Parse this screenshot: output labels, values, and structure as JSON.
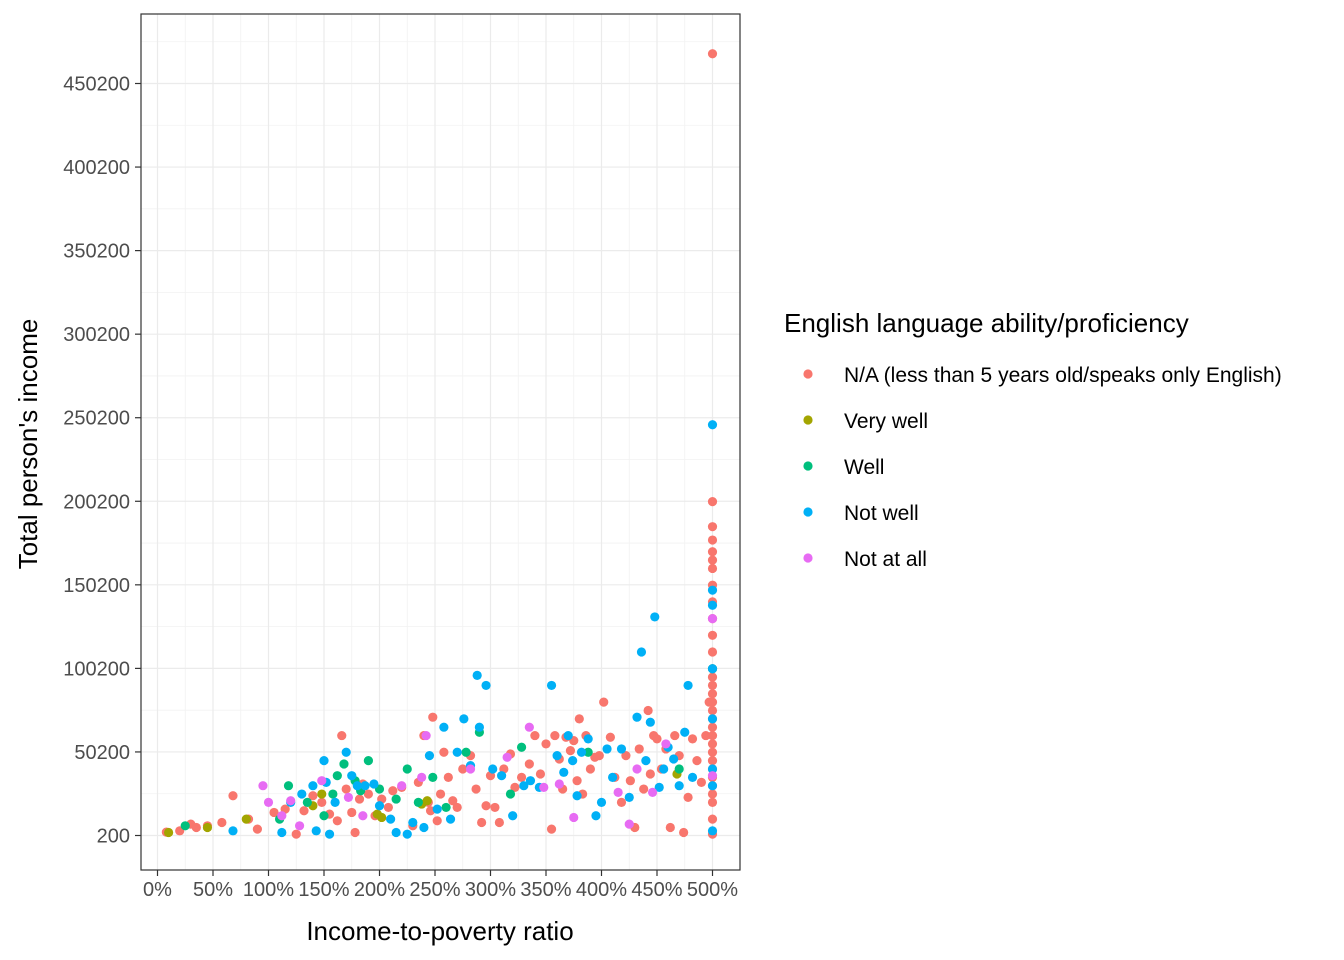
{
  "chart_data": {
    "type": "scatter",
    "xlabel": "Income-to-poverty ratio",
    "ylabel": "Total person's income",
    "xlim": [
      0,
      500
    ],
    "ylim": [
      200,
      450200
    ],
    "x_ticks": [
      0,
      50,
      100,
      150,
      200,
      250,
      300,
      350,
      400,
      450,
      500
    ],
    "x_tick_labels": [
      "0%",
      "50%",
      "100%",
      "150%",
      "200%",
      "250%",
      "300%",
      "350%",
      "400%",
      "450%",
      "500%"
    ],
    "y_ticks": [
      200,
      50200,
      100200,
      150200,
      200200,
      250200,
      300200,
      350200,
      400200,
      450200
    ],
    "y_tick_labels": [
      "200",
      "50200",
      "100200",
      "150200",
      "200200",
      "250200",
      "300200",
      "350200",
      "400200",
      "450200"
    ],
    "grid": true,
    "legend": {
      "title": "English language ability/proficiency",
      "placement": "right"
    },
    "series": [
      {
        "name": "N/A (less than 5 years old/speaks only English)",
        "color": "#F8766D",
        "points": [
          [
            8,
            2200
          ],
          [
            20,
            3000
          ],
          [
            30,
            7000
          ],
          [
            35,
            5000
          ],
          [
            45,
            6000
          ],
          [
            58,
            8000
          ],
          [
            68,
            24000
          ],
          [
            82,
            10000
          ],
          [
            90,
            4000
          ],
          [
            105,
            14000
          ],
          [
            115,
            16000
          ],
          [
            125,
            1000
          ],
          [
            132,
            15000
          ],
          [
            140,
            24000
          ],
          [
            148,
            20000
          ],
          [
            155,
            13000
          ],
          [
            162,
            9000
          ],
          [
            166,
            60000
          ],
          [
            170,
            28000
          ],
          [
            175,
            14000
          ],
          [
            178,
            2000
          ],
          [
            182,
            22000
          ],
          [
            185,
            31000
          ],
          [
            190,
            25000
          ],
          [
            196,
            12000
          ],
          [
            202,
            22000
          ],
          [
            208,
            17000
          ],
          [
            212,
            27000
          ],
          [
            220,
            29000
          ],
          [
            230,
            6000
          ],
          [
            235,
            32000
          ],
          [
            240,
            60000
          ],
          [
            244,
            20000
          ],
          [
            246,
            15000
          ],
          [
            248,
            71000
          ],
          [
            252,
            9000
          ],
          [
            255,
            25000
          ],
          [
            258,
            50000
          ],
          [
            262,
            35000
          ],
          [
            266,
            21000
          ],
          [
            270,
            17000
          ],
          [
            275,
            40000
          ],
          [
            282,
            48000
          ],
          [
            287,
            28000
          ],
          [
            292,
            8000
          ],
          [
            296,
            18000
          ],
          [
            300,
            36000
          ],
          [
            304,
            17000
          ],
          [
            308,
            8000
          ],
          [
            312,
            40000
          ],
          [
            318,
            49000
          ],
          [
            322,
            29000
          ],
          [
            328,
            35000
          ],
          [
            335,
            43000
          ],
          [
            340,
            60000
          ],
          [
            345,
            37000
          ],
          [
            350,
            55000
          ],
          [
            355,
            4000
          ],
          [
            358,
            60000
          ],
          [
            362,
            46000
          ],
          [
            365,
            28000
          ],
          [
            368,
            59000
          ],
          [
            372,
            51000
          ],
          [
            375,
            57000
          ],
          [
            378,
            33000
          ],
          [
            380,
            70000
          ],
          [
            383,
            25000
          ],
          [
            386,
            60000
          ],
          [
            390,
            40000
          ],
          [
            394,
            47000
          ],
          [
            398,
            48000
          ],
          [
            402,
            80000
          ],
          [
            408,
            59000
          ],
          [
            412,
            35000
          ],
          [
            418,
            20000
          ],
          [
            422,
            48000
          ],
          [
            426,
            33000
          ],
          [
            430,
            5000
          ],
          [
            434,
            52000
          ],
          [
            438,
            28000
          ],
          [
            442,
            75000
          ],
          [
            444,
            37000
          ],
          [
            447,
            60000
          ],
          [
            450,
            58000
          ],
          [
            454,
            40000
          ],
          [
            458,
            52000
          ],
          [
            462,
            5000
          ],
          [
            466,
            60000
          ],
          [
            470,
            48000
          ],
          [
            474,
            2000
          ],
          [
            478,
            23000
          ],
          [
            482,
            58000
          ],
          [
            486,
            45000
          ],
          [
            490,
            32000
          ],
          [
            494,
            60000
          ],
          [
            497,
            80000
          ],
          [
            500,
            468000
          ],
          [
            500,
            200000
          ],
          [
            500,
            185000
          ],
          [
            500,
            177000
          ],
          [
            500,
            170000
          ],
          [
            500,
            165000
          ],
          [
            500,
            160000
          ],
          [
            500,
            150000
          ],
          [
            500,
            140000
          ],
          [
            500,
            130000
          ],
          [
            500,
            120000
          ],
          [
            500,
            110000
          ],
          [
            500,
            100000
          ],
          [
            500,
            95000
          ],
          [
            500,
            90000
          ],
          [
            500,
            85000
          ],
          [
            500,
            80000
          ],
          [
            500,
            75000
          ],
          [
            500,
            70000
          ],
          [
            500,
            65000
          ],
          [
            500,
            60000
          ],
          [
            500,
            55000
          ],
          [
            500,
            50000
          ],
          [
            500,
            45000
          ],
          [
            500,
            40000
          ],
          [
            500,
            35000
          ],
          [
            500,
            30000
          ],
          [
            500,
            25000
          ],
          [
            500,
            20000
          ],
          [
            500,
            10000
          ],
          [
            500,
            1000
          ]
        ]
      },
      {
        "name": "Very well",
        "color": "#A3A500",
        "points": [
          [
            10,
            2000
          ],
          [
            45,
            5000
          ],
          [
            80,
            10000
          ],
          [
            140,
            18000
          ],
          [
            148,
            25000
          ],
          [
            198,
            13000
          ],
          [
            202,
            11000
          ],
          [
            238,
            19000
          ],
          [
            243,
            21000
          ],
          [
            468,
            37000
          ]
        ]
      },
      {
        "name": "Well",
        "color": "#00BF7D",
        "points": [
          [
            25,
            6000
          ],
          [
            110,
            10000
          ],
          [
            118,
            30000
          ],
          [
            135,
            20000
          ],
          [
            150,
            12000
          ],
          [
            158,
            25000
          ],
          [
            162,
            36000
          ],
          [
            168,
            43000
          ],
          [
            178,
            33000
          ],
          [
            183,
            27000
          ],
          [
            190,
            45000
          ],
          [
            200,
            28000
          ],
          [
            215,
            22000
          ],
          [
            225,
            40000
          ],
          [
            235,
            20000
          ],
          [
            248,
            35000
          ],
          [
            260,
            17000
          ],
          [
            278,
            50000
          ],
          [
            290,
            62000
          ],
          [
            318,
            25000
          ],
          [
            328,
            53000
          ],
          [
            388,
            50000
          ],
          [
            470,
            40000
          ],
          [
            500,
            100000
          ]
        ]
      },
      {
        "name": "Not well",
        "color": "#00B0F6",
        "points": [
          [
            68,
            3000
          ],
          [
            112,
            2000
          ],
          [
            120,
            20000
          ],
          [
            130,
            25000
          ],
          [
            140,
            30000
          ],
          [
            143,
            3000
          ],
          [
            150,
            45000
          ],
          [
            152,
            32000
          ],
          [
            155,
            1000
          ],
          [
            160,
            20000
          ],
          [
            170,
            50000
          ],
          [
            175,
            36000
          ],
          [
            180,
            30000
          ],
          [
            187,
            30000
          ],
          [
            195,
            31000
          ],
          [
            200,
            18000
          ],
          [
            210,
            10000
          ],
          [
            215,
            2000
          ],
          [
            225,
            1000
          ],
          [
            230,
            8000
          ],
          [
            240,
            5000
          ],
          [
            245,
            48000
          ],
          [
            252,
            16000
          ],
          [
            258,
            65000
          ],
          [
            264,
            10000
          ],
          [
            270,
            50000
          ],
          [
            276,
            70000
          ],
          [
            282,
            42000
          ],
          [
            288,
            96000
          ],
          [
            290,
            65000
          ],
          [
            296,
            90000
          ],
          [
            302,
            40000
          ],
          [
            310,
            36000
          ],
          [
            320,
            12000
          ],
          [
            330,
            30000
          ],
          [
            336,
            33000
          ],
          [
            344,
            29000
          ],
          [
            355,
            90000
          ],
          [
            360,
            48000
          ],
          [
            366,
            38000
          ],
          [
            370,
            60000
          ],
          [
            374,
            45000
          ],
          [
            378,
            24000
          ],
          [
            382,
            50000
          ],
          [
            388,
            58000
          ],
          [
            395,
            12000
          ],
          [
            400,
            20000
          ],
          [
            405,
            52000
          ],
          [
            410,
            35000
          ],
          [
            418,
            52000
          ],
          [
            425,
            23000
          ],
          [
            432,
            71000
          ],
          [
            436,
            110000
          ],
          [
            440,
            45000
          ],
          [
            444,
            68000
          ],
          [
            448,
            131000
          ],
          [
            452,
            29000
          ],
          [
            456,
            40000
          ],
          [
            460,
            53000
          ],
          [
            465,
            46000
          ],
          [
            470,
            30000
          ],
          [
            475,
            62000
          ],
          [
            478,
            90000
          ],
          [
            482,
            35000
          ],
          [
            500,
            246000
          ],
          [
            500,
            147000
          ],
          [
            500,
            138000
          ],
          [
            500,
            100000
          ],
          [
            500,
            70000
          ],
          [
            500,
            40000
          ],
          [
            500,
            30000
          ],
          [
            500,
            3000
          ]
        ]
      },
      {
        "name": "Not at all",
        "color": "#E76BF3",
        "points": [
          [
            95,
            30000
          ],
          [
            100,
            20000
          ],
          [
            112,
            12000
          ],
          [
            120,
            21000
          ],
          [
            128,
            6000
          ],
          [
            148,
            33000
          ],
          [
            172,
            23000
          ],
          [
            185,
            12000
          ],
          [
            220,
            30000
          ],
          [
            238,
            35000
          ],
          [
            242,
            60000
          ],
          [
            282,
            40000
          ],
          [
            315,
            47000
          ],
          [
            335,
            65000
          ],
          [
            348,
            29000
          ],
          [
            362,
            31000
          ],
          [
            375,
            11000
          ],
          [
            415,
            26000
          ],
          [
            425,
            7000
          ],
          [
            432,
            40000
          ],
          [
            446,
            26000
          ],
          [
            458,
            55000
          ],
          [
            500,
            130000
          ],
          [
            500,
            36000
          ]
        ]
      }
    ]
  }
}
